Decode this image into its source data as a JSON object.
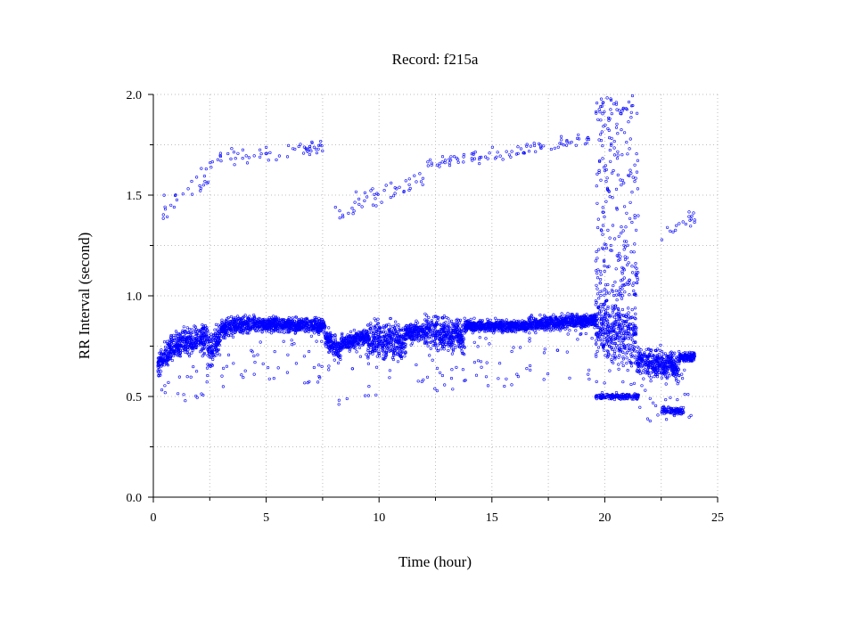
{
  "chart_data": {
    "type": "scatter",
    "title": "Record:  f215a",
    "xlabel": "Time (hour)",
    "ylabel": "RR Interval (second)",
    "xlim": [
      0,
      25
    ],
    "ylim": [
      0,
      2.0
    ],
    "x_ticks": [
      "0",
      "5",
      "10",
      "15",
      "20",
      "25"
    ],
    "y_ticks": [
      "0.0",
      "0.5",
      "1.0",
      "1.5",
      "2.0"
    ],
    "grid": true,
    "marker": "open-circle",
    "series": [
      {
        "color": "#0000ff",
        "segments": [
          {
            "x": [
              0.2,
              1.0
            ],
            "y": [
              0.66,
              0.76
            ],
            "spread": 0.09
          },
          {
            "x": [
              1.0,
              2.4
            ],
            "y": [
              0.76,
              0.79
            ],
            "spread": 0.09
          },
          {
            "x": [
              2.4,
              3.0
            ],
            "y": [
              0.72,
              0.8
            ],
            "spread": 0.13
          },
          {
            "x": [
              3.0,
              4.3
            ],
            "y": [
              0.84,
              0.86
            ],
            "spread": 0.06
          },
          {
            "x": [
              4.3,
              7.6
            ],
            "y": [
              0.86,
              0.85
            ],
            "spread": 0.05
          },
          {
            "x": [
              7.6,
              8.3
            ],
            "y": [
              0.8,
              0.72
            ],
            "spread": 0.08
          },
          {
            "x": [
              8.3,
              9.5
            ],
            "y": [
              0.76,
              0.8
            ],
            "spread": 0.06
          },
          {
            "x": [
              9.5,
              11.2
            ],
            "y": [
              0.78,
              0.78
            ],
            "spread": 0.13
          },
          {
            "x": [
              11.2,
              12.0
            ],
            "y": [
              0.82,
              0.82
            ],
            "spread": 0.06
          },
          {
            "x": [
              12.0,
              13.8
            ],
            "y": [
              0.83,
              0.8
            ],
            "spread": 0.12
          },
          {
            "x": [
              13.8,
              16.6
            ],
            "y": [
              0.85,
              0.85
            ],
            "spread": 0.04
          },
          {
            "x": [
              16.6,
              19.6
            ],
            "y": [
              0.86,
              0.88
            ],
            "spread": 0.05
          },
          {
            "x": [
              19.6,
              21.4
            ],
            "y": [
              0.85,
              0.8
            ],
            "spread": 0.22
          },
          {
            "x": [
              21.4,
              23.3
            ],
            "y": [
              0.68,
              0.65
            ],
            "spread": 0.1
          },
          {
            "x": [
              23.3,
              24.0
            ],
            "y": [
              0.69,
              0.7
            ],
            "spread": 0.03
          }
        ],
        "upper_band": [
          {
            "x": [
              0.3,
              2.5
            ],
            "y": [
              1.45,
              1.6
            ],
            "spread": 0.12
          },
          {
            "x": [
              2.5,
              7.5
            ],
            "y": [
              1.68,
              1.74
            ],
            "spread": 0.06
          },
          {
            "x": [
              8.0,
              12.0
            ],
            "y": [
              1.42,
              1.58
            ],
            "spread": 0.08
          },
          {
            "x": [
              12.0,
              16.0
            ],
            "y": [
              1.65,
              1.72
            ],
            "spread": 0.05
          },
          {
            "x": [
              16.0,
              19.5
            ],
            "y": [
              1.72,
              1.78
            ],
            "spread": 0.05
          },
          {
            "x": [
              22.5,
              24.0
            ],
            "y": [
              1.3,
              1.4
            ],
            "spread": 0.08
          }
        ],
        "lower_clusters": [
          {
            "x": [
              19.6,
              21.5
            ],
            "y": [
              0.5,
              0.5
            ],
            "spread": 0.02
          },
          {
            "x": [
              22.5,
              23.5
            ],
            "y": [
              0.43,
              0.43
            ],
            "spread": 0.03
          }
        ],
        "high_spikes": {
          "x": [
            19.6,
            21.5
          ],
          "y": [
            1.0,
            2.0
          ]
        }
      }
    ]
  }
}
